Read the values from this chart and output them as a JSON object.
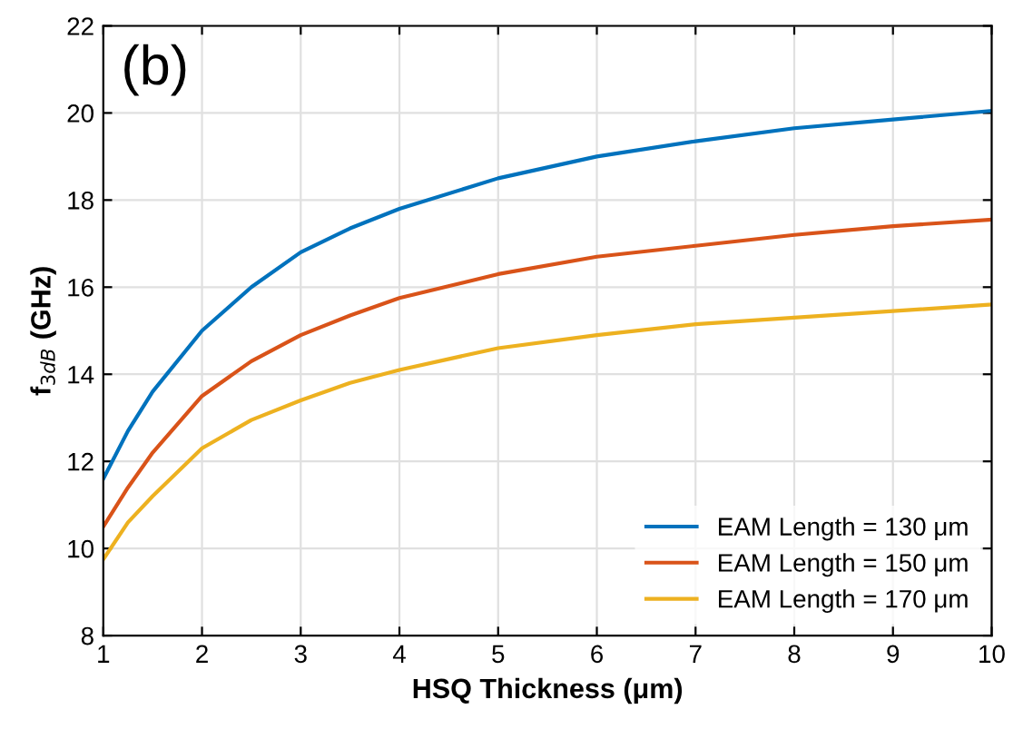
{
  "chart_data": {
    "type": "line",
    "xlabel": "HSQ Thickness (μm)",
    "ylabel": "f$_{3dB}$ (GHz)",
    "x": [
      1,
      1.25,
      1.5,
      2,
      2.5,
      3,
      3.5,
      4,
      5,
      6,
      7,
      8,
      9,
      10
    ],
    "series": [
      {
        "name": "EAM Length = 130 μm",
        "color": "#0072bd",
        "values": [
          11.6,
          12.7,
          13.6,
          15.0,
          16.0,
          16.8,
          17.35,
          17.8,
          18.5,
          19.0,
          19.35,
          19.65,
          19.85,
          20.05
        ]
      },
      {
        "name": "EAM Length = 150 μm",
        "color": "#d95319",
        "values": [
          10.5,
          11.4,
          12.2,
          13.5,
          14.3,
          14.9,
          15.35,
          15.75,
          16.3,
          16.7,
          16.95,
          17.2,
          17.4,
          17.55
        ]
      },
      {
        "name": "EAM Length = 170 μm",
        "color": "#edb120",
        "values": [
          9.75,
          10.6,
          11.2,
          12.3,
          12.95,
          13.4,
          13.8,
          14.1,
          14.6,
          14.9,
          15.15,
          15.3,
          15.45,
          15.6
        ]
      }
    ],
    "xlim": [
      1,
      10
    ],
    "xticks": [
      1,
      2,
      3,
      4,
      5,
      6,
      7,
      8,
      9,
      10
    ],
    "ylim": [
      8,
      22
    ],
    "yticks": [
      8,
      10,
      12,
      14,
      16,
      18,
      20,
      22
    ],
    "grid": true,
    "legend": "bottom right",
    "marker": "none",
    "line_style": "solid",
    "annotations": [
      "(b)"
    ]
  }
}
